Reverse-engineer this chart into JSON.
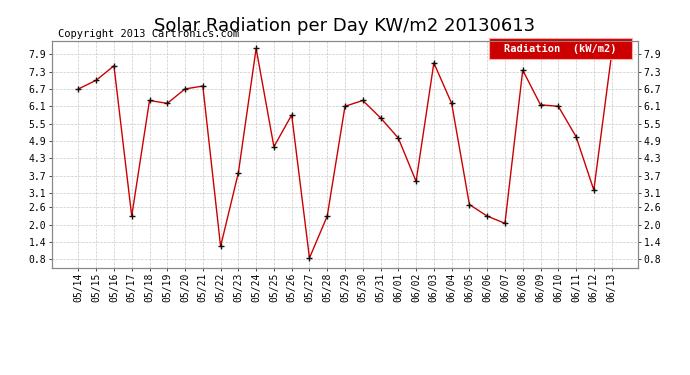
{
  "title": "Solar Radiation per Day KW/m2 20130613",
  "copyright": "Copyright 2013 Cartronics.com",
  "legend_label": "Radiation  (kW/m2)",
  "x_labels": [
    "05/14",
    "05/15",
    "05/16",
    "05/17",
    "05/18",
    "05/19",
    "05/20",
    "05/21",
    "05/22",
    "05/23",
    "05/24",
    "05/25",
    "05/26",
    "05/27",
    "05/28",
    "05/29",
    "05/30",
    "05/31",
    "06/01",
    "06/02",
    "06/03",
    "06/04",
    "06/05",
    "06/06",
    "06/07",
    "06/08",
    "06/09",
    "06/10",
    "06/11",
    "06/12",
    "06/13"
  ],
  "y_values": [
    6.7,
    7.0,
    7.5,
    2.3,
    6.3,
    6.2,
    6.7,
    6.8,
    1.25,
    3.8,
    8.1,
    4.7,
    5.8,
    0.85,
    2.3,
    6.1,
    6.3,
    5.7,
    5.0,
    3.5,
    7.6,
    6.2,
    2.7,
    2.3,
    2.05,
    7.35,
    6.15,
    6.1,
    5.05,
    3.2,
    7.9
  ],
  "line_color": "#cc0000",
  "marker_color": "#111111",
  "bg_color": "#ffffff",
  "grid_color": "#bbbbbb",
  "legend_bg": "#cc0000",
  "legend_text_color": "#ffffff",
  "ylim": [
    0.5,
    8.35
  ],
  "yticks": [
    0.8,
    1.4,
    2.0,
    2.6,
    3.1,
    3.7,
    4.3,
    4.9,
    5.5,
    6.1,
    6.7,
    7.3,
    7.9
  ],
  "title_fontsize": 13,
  "copyright_fontsize": 7.5,
  "tick_fontsize": 7,
  "legend_fontsize": 7.5
}
